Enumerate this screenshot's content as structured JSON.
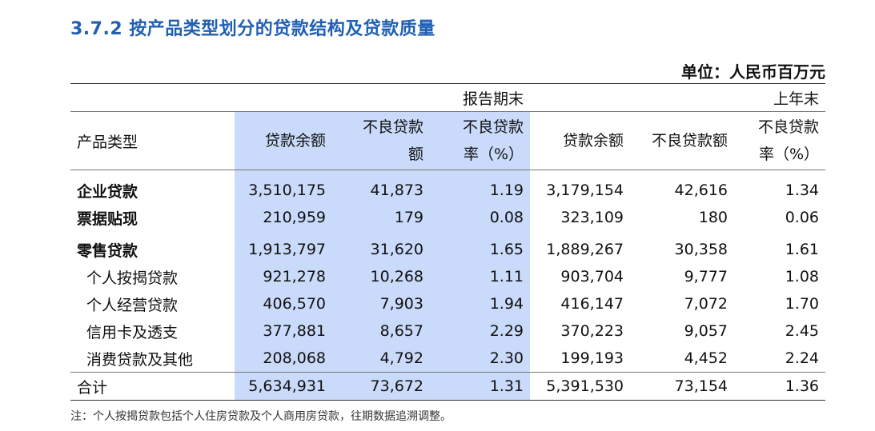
{
  "title": "3.7.2  按产品类型划分的贷款结构及贷款质量",
  "unit": "单位：人民币百万元",
  "periods": {
    "current": "报告期末",
    "previous": "上年末"
  },
  "headers": {
    "product_type": "产品类型",
    "loan_balance": "贷款余额",
    "npl_amount_line1": "不良贷款",
    "npl_amount_line2": "额",
    "npl_ratio_line1": "不良贷款",
    "npl_ratio_line2": "率（%）",
    "prev_loan_balance": "贷款余额",
    "prev_npl_amount": "不良贷款额",
    "prev_npl_ratio_line1": "不良贷款",
    "prev_npl_ratio_line2": "率（%）"
  },
  "rows": [
    {
      "name": "企业贷款",
      "bold": true,
      "values": [
        "3,510,175",
        "41,873",
        "1.19",
        "3,179,154",
        "42,616",
        "1.34"
      ]
    },
    {
      "name": "票据贴现",
      "bold": true,
      "values": [
        "210,959",
        "179",
        "0.08",
        "323,109",
        "180",
        "0.06"
      ]
    },
    {
      "name": "零售贷款",
      "bold": true,
      "values": [
        "1,913,797",
        "31,620",
        "1.65",
        "1,889,267",
        "30,358",
        "1.61"
      ]
    },
    {
      "name": "个人按揭贷款",
      "bold": false,
      "values": [
        "921,278",
        "10,268",
        "1.11",
        "903,704",
        "9,777",
        "1.08"
      ]
    },
    {
      "name": "个人经营贷款",
      "bold": false,
      "values": [
        "406,570",
        "7,903",
        "1.94",
        "416,147",
        "7,072",
        "1.70"
      ]
    },
    {
      "name": "信用卡及透支",
      "bold": false,
      "values": [
        "377,881",
        "8,657",
        "2.29",
        "370,223",
        "9,057",
        "2.45"
      ]
    },
    {
      "name": "消费贷款及其他",
      "bold": false,
      "values": [
        "208,068",
        "4,792",
        "2.30",
        "199,193",
        "4,452",
        "2.24"
      ]
    }
  ],
  "total": {
    "name": "合计",
    "values": [
      "5,634,931",
      "73,672",
      "1.31",
      "5,391,530",
      "73,154",
      "1.36"
    ]
  },
  "note": "注：个人按揭贷款包括个人住房贷款及个人商用房贷款，往期数据追溯调整。"
}
